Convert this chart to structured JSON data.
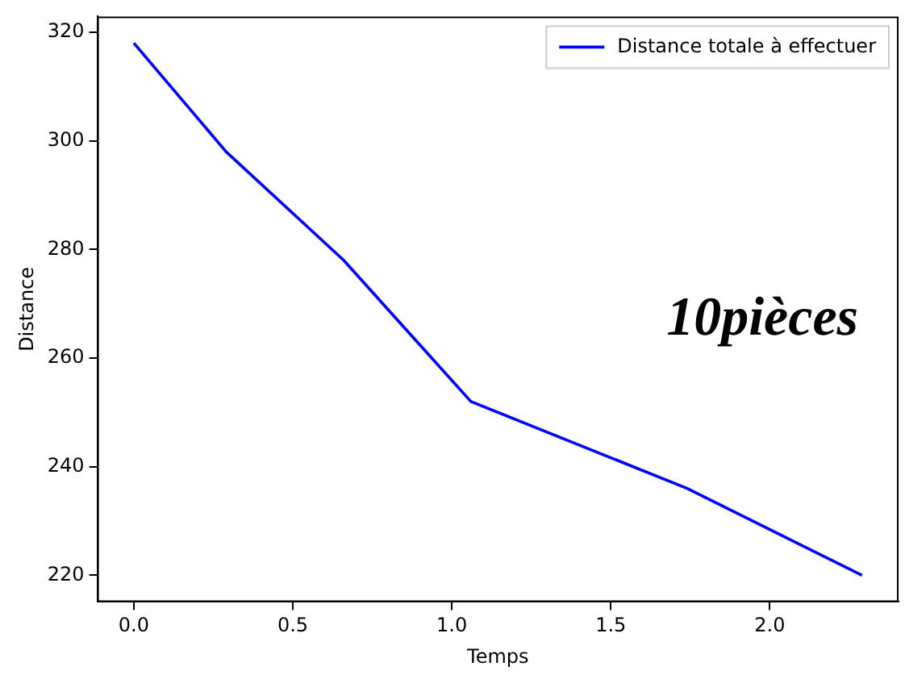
{
  "chart_data": {
    "type": "line",
    "xlabel": "Temps",
    "ylabel": "Distance",
    "x": [
      0,
      0.29,
      0.66,
      1.06,
      1.74,
      2.29
    ],
    "series": [
      {
        "name": "Distance totale à effectuer",
        "color": "#0000ff",
        "values": [
          318,
          298,
          278,
          252,
          236,
          220
        ]
      }
    ],
    "xlim": [
      -0.115,
      2.405
    ],
    "ylim": [
      215.1,
      322.9
    ],
    "xticks": [
      {
        "value": 0,
        "label": "0.0"
      },
      {
        "value": 0.5,
        "label": "0.5"
      },
      {
        "value": 1,
        "label": "1.0"
      },
      {
        "value": 1.5,
        "label": "1.5"
      },
      {
        "value": 2,
        "label": "2.0"
      }
    ],
    "yticks": [
      220,
      240,
      260,
      280,
      300,
      320
    ],
    "grid": false,
    "legend": "top right",
    "marker": "none",
    "line_style": "solid",
    "annotations": [
      "10pièces"
    ]
  }
}
